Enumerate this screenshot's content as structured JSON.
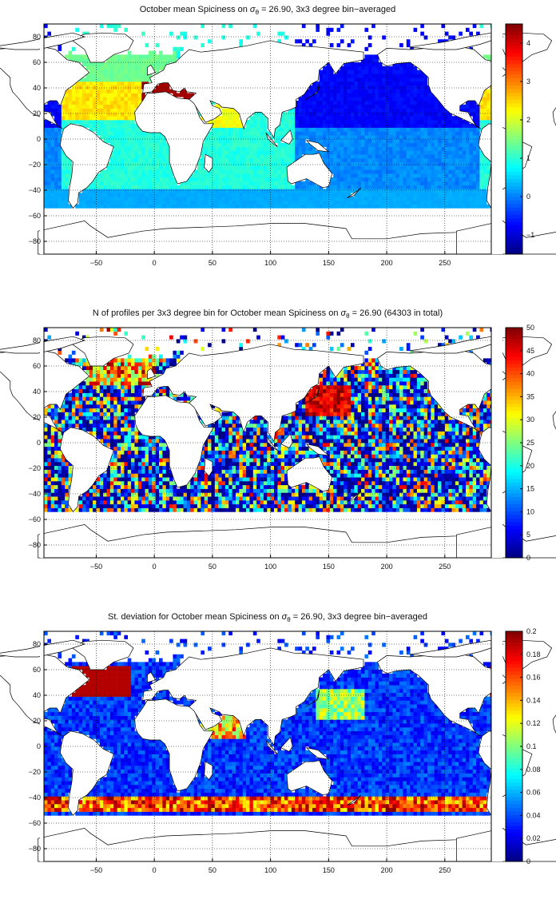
{
  "chart_data": [
    {
      "type": "heatmap",
      "title_pre": "October mean Spiciness on ",
      "title_sym": "σ",
      "title_sub": "θ",
      "title_post": " = 26.90, 3x3 degree bin−averaged",
      "xlabel": "",
      "ylabel": "",
      "xlim": [
        -95,
        290
      ],
      "ylim": [
        -90,
        90
      ],
      "xticks": [
        "−50",
        "0",
        "50",
        "100",
        "150",
        "200",
        "250"
      ],
      "xtick_values": [
        -50,
        0,
        50,
        100,
        150,
        200,
        250
      ],
      "yticks": [
        "80",
        "60",
        "40",
        "20",
        "0",
        "−20",
        "−40",
        "−60",
        "−80"
      ],
      "ytick_values": [
        80,
        60,
        40,
        20,
        0,
        -20,
        -40,
        -60,
        -80
      ],
      "grid": true,
      "colorbar": {
        "range": [
          -1.5,
          4.5
        ],
        "ticks": [
          "4",
          "3",
          "2",
          "1",
          "0",
          "−1"
        ],
        "tick_values": [
          4,
          3,
          2,
          1,
          0,
          -1
        ]
      },
      "pattern": "mean"
    },
    {
      "type": "heatmap",
      "title_pre": "N of profiles per 3x3 degree bin for October mean Spiciness on ",
      "title_sym": "σ",
      "title_sub": "θ",
      "title_post": " = 26.90 (64303 in total)",
      "xlabel": "",
      "ylabel": "",
      "xlim": [
        -95,
        290
      ],
      "ylim": [
        -90,
        90
      ],
      "xticks": [
        "−50",
        "0",
        "50",
        "100",
        "150",
        "200",
        "250"
      ],
      "xtick_values": [
        -50,
        0,
        50,
        100,
        150,
        200,
        250
      ],
      "yticks": [
        "80",
        "60",
        "40",
        "20",
        "0",
        "−20",
        "−40",
        "−60",
        "−80"
      ],
      "ytick_values": [
        80,
        60,
        40,
        20,
        0,
        -20,
        -40,
        -60,
        -80
      ],
      "grid": true,
      "colorbar": {
        "range": [
          0,
          50
        ],
        "ticks": [
          "50",
          "45",
          "40",
          "35",
          "30",
          "25",
          "20",
          "15",
          "10",
          "5",
          "0"
        ],
        "tick_values": [
          50,
          45,
          40,
          35,
          30,
          25,
          20,
          15,
          10,
          5,
          0
        ]
      },
      "pattern": "count"
    },
    {
      "type": "heatmap",
      "title_pre": "St. deviation for October mean Spiciness on ",
      "title_sym": "σ",
      "title_sub": "θ",
      "title_post": " = 26.90, 3x3 degree bin−averaged",
      "xlabel": "",
      "ylabel": "",
      "xlim": [
        -95,
        290
      ],
      "ylim": [
        -90,
        90
      ],
      "xticks": [
        "−50",
        "0",
        "50",
        "100",
        "150",
        "200",
        "250"
      ],
      "xtick_values": [
        -50,
        0,
        50,
        100,
        150,
        200,
        250
      ],
      "yticks": [
        "80",
        "60",
        "40",
        "20",
        "0",
        "−20",
        "−40",
        "−60",
        "−80"
      ],
      "ytick_values": [
        80,
        60,
        40,
        20,
        0,
        -20,
        -40,
        -60,
        -80
      ],
      "grid": true,
      "colorbar": {
        "range": [
          0,
          0.2
        ],
        "ticks": [
          "0.2",
          "0.18",
          "0.16",
          "0.14",
          "0.12",
          "0.1",
          "0.08",
          "0.06",
          "0.04",
          "0.02",
          "0"
        ],
        "tick_values": [
          0.2,
          0.18,
          0.16,
          0.14,
          0.12,
          0.1,
          0.08,
          0.06,
          0.04,
          0.02,
          0
        ]
      },
      "pattern": "std"
    }
  ],
  "colors": {
    "colormap": "jet",
    "land": "#ffffff",
    "coastline": "#000000"
  }
}
